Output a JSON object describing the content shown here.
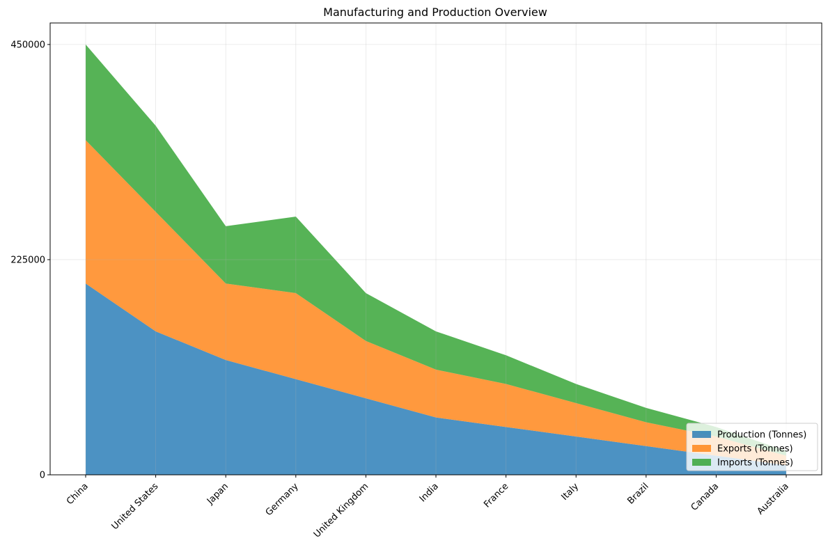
{
  "chart_data": {
    "type": "area",
    "stacked": true,
    "title": "Manufacturing and Production Overview",
    "xlabel": "",
    "ylabel": "",
    "categories": [
      "China",
      "United States",
      "Japan",
      "Germany",
      "United Kingdom",
      "India",
      "France",
      "Italy",
      "Brazil",
      "Canada",
      "Australia"
    ],
    "series": [
      {
        "name": "Production (Tonnes)",
        "color": "#1f77b4",
        "values": [
          200000,
          150000,
          120000,
          100000,
          80000,
          60000,
          50000,
          40000,
          30000,
          20000,
          10000
        ]
      },
      {
        "name": "Exports (Tonnes)",
        "color": "#ff7f0e",
        "values": [
          150000,
          125000,
          80000,
          90000,
          60000,
          50000,
          45000,
          35000,
          25000,
          20000,
          10000
        ]
      },
      {
        "name": "Imports (Tonnes)",
        "color": "#2ca02c",
        "values": [
          100000,
          90000,
          60000,
          80000,
          50000,
          40000,
          30000,
          20000,
          15000,
          10000,
          5000
        ]
      }
    ],
    "ylim": [
      0,
      472500
    ],
    "yticks": [
      0,
      225000,
      450000
    ],
    "ytick_labels": [
      "0",
      "225000",
      "450000"
    ],
    "grid": true,
    "legend_position": "lower-right",
    "area_alpha": 0.8
  }
}
